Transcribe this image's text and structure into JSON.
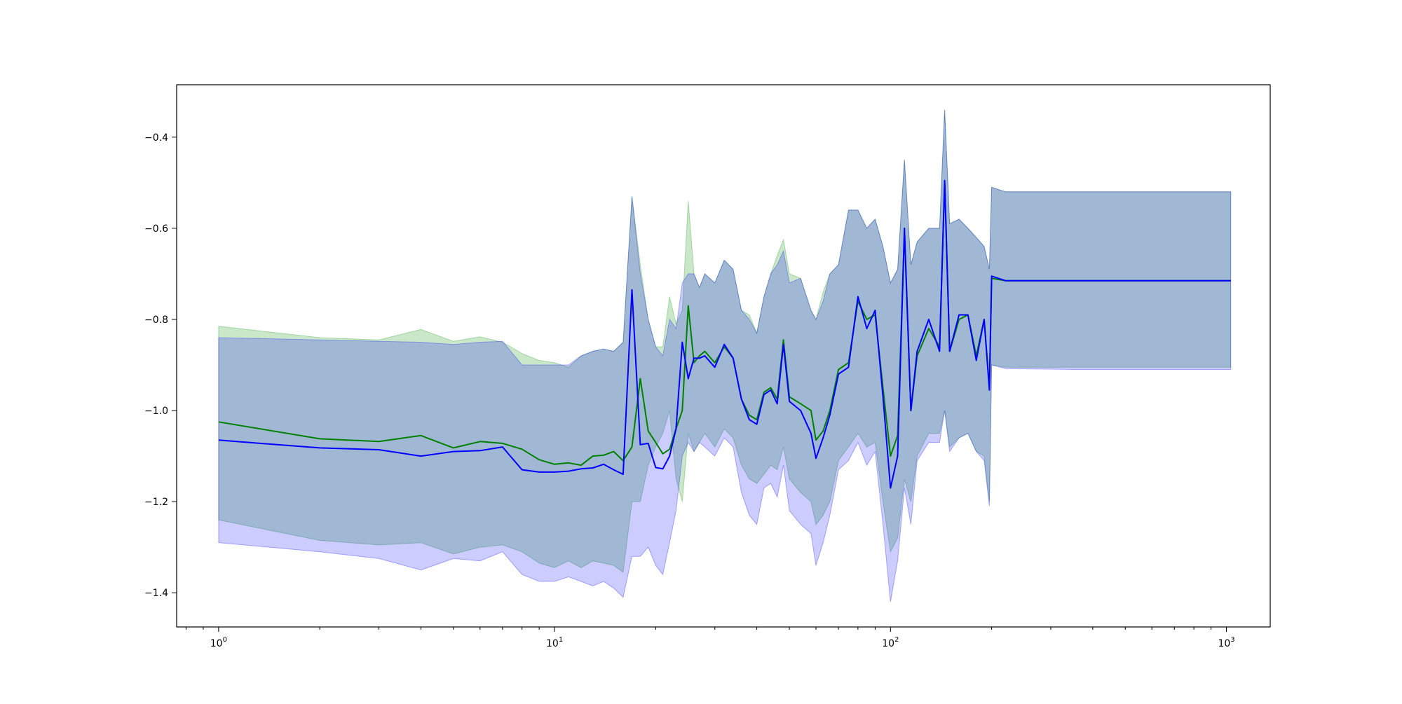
{
  "chart_data": {
    "type": "line",
    "title": "",
    "xlabel": "",
    "ylabel": "",
    "xscale": "log",
    "xlim": [
      0.75,
      1350
    ],
    "ylim": [
      -1.475,
      -0.285
    ],
    "grid": false,
    "legend": "none",
    "x_ticks": [
      {
        "value": 1,
        "base": "10",
        "exp": "0"
      },
      {
        "value": 10,
        "base": "10",
        "exp": "1"
      },
      {
        "value": 100,
        "base": "10",
        "exp": "2"
      },
      {
        "value": 1000,
        "base": "10",
        "exp": "3"
      }
    ],
    "y_ticks": [
      {
        "value": -0.4,
        "label": "−0.4"
      },
      {
        "value": -0.6,
        "label": "−0.6"
      },
      {
        "value": -0.8,
        "label": "−0.8"
      },
      {
        "value": -1.0,
        "label": "−1.0"
      },
      {
        "value": -1.2,
        "label": "−1.2"
      },
      {
        "value": -1.4,
        "label": "−1.4"
      }
    ],
    "series": [
      {
        "color": "#008000",
        "band_color": "#2ca02c",
        "band_opacity": 0.25,
        "x": [
          1,
          2,
          3,
          4,
          5,
          6,
          7,
          8,
          9,
          10,
          11,
          12,
          13,
          14,
          15,
          16,
          17,
          18,
          19,
          20,
          21,
          22,
          23,
          24,
          25,
          26,
          27,
          28,
          30,
          32,
          34,
          36,
          38,
          40,
          42,
          44,
          46,
          48,
          50,
          54,
          58,
          60,
          63,
          66,
          70,
          75,
          80,
          85,
          90,
          95,
          100,
          105,
          110,
          115,
          120,
          130,
          140,
          145,
          150,
          160,
          170,
          180,
          190,
          197,
          200,
          220,
          350,
          650,
          1030
        ],
        "y": [
          -1.025,
          -1.062,
          -1.068,
          -1.055,
          -1.082,
          -1.068,
          -1.072,
          -1.085,
          -1.108,
          -1.118,
          -1.115,
          -1.12,
          -1.1,
          -1.098,
          -1.09,
          -1.11,
          -1.08,
          -0.93,
          -1.045,
          -1.07,
          -1.095,
          -1.085,
          -1.04,
          -1.0,
          -0.77,
          -0.895,
          -0.88,
          -0.87,
          -0.895,
          -0.86,
          -0.885,
          -0.975,
          -1.01,
          -1.02,
          -0.96,
          -0.95,
          -0.975,
          -0.845,
          -0.97,
          -0.985,
          -1.0,
          -1.065,
          -1.045,
          -1.0,
          -0.91,
          -0.895,
          -0.76,
          -0.8,
          -0.79,
          -0.95,
          -1.1,
          -1.055,
          -0.61,
          -1.0,
          -0.88,
          -0.82,
          -0.86,
          -0.5,
          -0.87,
          -0.8,
          -0.79,
          -0.88,
          -0.8,
          -0.95,
          -0.71,
          -0.715,
          -0.715,
          -0.715,
          -0.715
        ],
        "upper": [
          -0.815,
          -0.84,
          -0.845,
          -0.822,
          -0.848,
          -0.838,
          -0.85,
          -0.875,
          -0.89,
          -0.895,
          -0.905,
          -0.88,
          -0.87,
          -0.865,
          -0.87,
          -0.85,
          -0.53,
          -0.68,
          -0.8,
          -0.86,
          -0.86,
          -0.75,
          -0.81,
          -0.78,
          -0.54,
          -0.7,
          -0.73,
          -0.7,
          -0.72,
          -0.67,
          -0.69,
          -0.78,
          -0.79,
          -0.83,
          -0.75,
          -0.7,
          -0.66,
          -0.625,
          -0.7,
          -0.71,
          -0.78,
          -0.8,
          -0.74,
          -0.7,
          -0.68,
          -0.56,
          -0.56,
          -0.6,
          -0.58,
          -0.64,
          -0.72,
          -0.69,
          -0.45,
          -0.68,
          -0.63,
          -0.6,
          -0.6,
          -0.34,
          -0.59,
          -0.58,
          -0.6,
          -0.62,
          -0.64,
          -0.69,
          -0.51,
          -0.52,
          -0.52,
          -0.52,
          -0.52
        ],
        "lower": [
          -1.24,
          -1.285,
          -1.295,
          -1.29,
          -1.315,
          -1.3,
          -1.295,
          -1.31,
          -1.335,
          -1.345,
          -1.33,
          -1.345,
          -1.33,
          -1.335,
          -1.34,
          -1.355,
          -1.2,
          -1.2,
          -1.12,
          -1.08,
          -1.05,
          -1.0,
          -1.15,
          -1.2,
          -1.05,
          -1.09,
          -1.07,
          -1.05,
          -1.08,
          -1.04,
          -1.06,
          -1.12,
          -1.15,
          -1.16,
          -1.14,
          -1.12,
          -1.13,
          -1.08,
          -1.15,
          -1.18,
          -1.2,
          -1.25,
          -1.23,
          -1.2,
          -1.11,
          -1.08,
          -1.05,
          -1.08,
          -1.07,
          -1.2,
          -1.31,
          -1.28,
          -1.15,
          -1.2,
          -1.1,
          -1.05,
          -1.05,
          -1.0,
          -1.08,
          -1.06,
          -1.05,
          -1.09,
          -1.1,
          -1.2,
          -0.9,
          -0.905,
          -0.905,
          -0.905,
          -0.905
        ]
      },
      {
        "color": "#0000ff",
        "band_color": "#0000ff",
        "band_opacity": 0.2,
        "x": [
          1,
          2,
          3,
          4,
          5,
          6,
          7,
          8,
          9,
          10,
          11,
          12,
          13,
          14,
          15,
          16,
          17,
          18,
          19,
          20,
          21,
          22,
          23,
          24,
          25,
          26,
          27,
          28,
          30,
          32,
          34,
          36,
          38,
          40,
          42,
          44,
          46,
          48,
          50,
          54,
          58,
          60,
          63,
          66,
          70,
          75,
          80,
          85,
          90,
          95,
          100,
          105,
          110,
          115,
          120,
          130,
          140,
          145,
          150,
          160,
          170,
          180,
          190,
          197,
          200,
          220,
          350,
          650,
          1030
        ],
        "y": [
          -1.065,
          -1.082,
          -1.086,
          -1.1,
          -1.09,
          -1.088,
          -1.08,
          -1.13,
          -1.135,
          -1.135,
          -1.133,
          -1.128,
          -1.126,
          -1.118,
          -1.13,
          -1.14,
          -0.735,
          -1.075,
          -1.072,
          -1.125,
          -1.128,
          -1.1,
          -1.04,
          -0.85,
          -0.93,
          -0.885,
          -0.885,
          -0.88,
          -0.905,
          -0.855,
          -0.885,
          -0.975,
          -1.02,
          -1.03,
          -0.965,
          -0.955,
          -0.985,
          -0.855,
          -0.98,
          -1.0,
          -1.05,
          -1.105,
          -1.06,
          -1.01,
          -0.92,
          -0.905,
          -0.75,
          -0.82,
          -0.78,
          -0.97,
          -1.17,
          -1.1,
          -0.6,
          -1.0,
          -0.87,
          -0.8,
          -0.87,
          -0.495,
          -0.87,
          -0.79,
          -0.79,
          -0.89,
          -0.8,
          -0.955,
          -0.705,
          -0.715,
          -0.715,
          -0.715,
          -0.715
        ],
        "upper": [
          -0.84,
          -0.845,
          -0.848,
          -0.85,
          -0.855,
          -0.85,
          -0.848,
          -0.9,
          -0.9,
          -0.9,
          -0.9,
          -0.88,
          -0.87,
          -0.865,
          -0.87,
          -0.85,
          -0.53,
          -0.7,
          -0.8,
          -0.86,
          -0.88,
          -0.8,
          -0.82,
          -0.72,
          -0.7,
          -0.7,
          -0.73,
          -0.7,
          -0.72,
          -0.67,
          -0.69,
          -0.78,
          -0.8,
          -0.83,
          -0.75,
          -0.7,
          -0.68,
          -0.65,
          -0.72,
          -0.71,
          -0.78,
          -0.8,
          -0.76,
          -0.7,
          -0.68,
          -0.56,
          -0.56,
          -0.6,
          -0.58,
          -0.64,
          -0.72,
          -0.69,
          -0.45,
          -0.68,
          -0.63,
          -0.6,
          -0.6,
          -0.34,
          -0.59,
          -0.58,
          -0.6,
          -0.62,
          -0.64,
          -0.69,
          -0.51,
          -0.52,
          -0.52,
          -0.52,
          -0.52
        ],
        "lower": [
          -1.29,
          -1.31,
          -1.325,
          -1.35,
          -1.325,
          -1.33,
          -1.31,
          -1.36,
          -1.375,
          -1.375,
          -1.365,
          -1.375,
          -1.385,
          -1.375,
          -1.39,
          -1.41,
          -1.32,
          -1.32,
          -1.3,
          -1.34,
          -1.36,
          -1.29,
          -1.22,
          -1.1,
          -1.07,
          -1.09,
          -1.07,
          -1.08,
          -1.1,
          -1.06,
          -1.08,
          -1.18,
          -1.23,
          -1.25,
          -1.17,
          -1.16,
          -1.19,
          -1.12,
          -1.22,
          -1.25,
          -1.27,
          -1.34,
          -1.29,
          -1.23,
          -1.13,
          -1.11,
          -1.07,
          -1.12,
          -1.09,
          -1.25,
          -1.42,
          -1.33,
          -1.17,
          -1.25,
          -1.11,
          -1.07,
          -1.07,
          -1.0,
          -1.09,
          -1.06,
          -1.05,
          -1.09,
          -1.11,
          -1.21,
          -0.9,
          -0.908,
          -0.91,
          -0.91,
          -0.91
        ]
      }
    ]
  }
}
